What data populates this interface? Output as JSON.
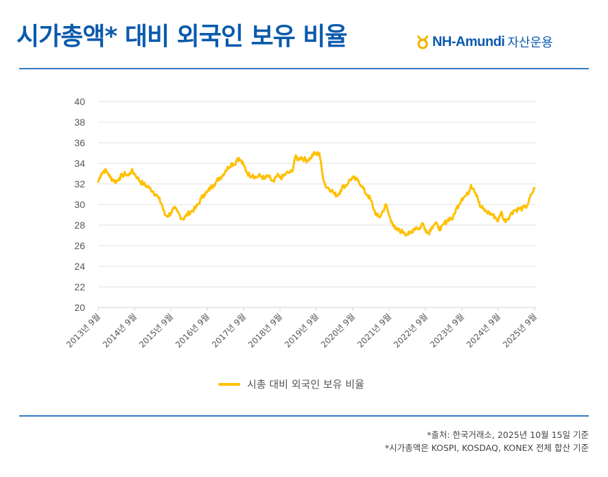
{
  "header": {
    "title": "시가총액* 대비 외국인 보유 비율",
    "brand": "NH-Amundi",
    "brand_suffix": "자산운용",
    "accent_color": "#0a5aad"
  },
  "chart_data": {
    "type": "line",
    "title": "",
    "xlabel": "",
    "ylabel": "",
    "ylim": [
      20,
      40
    ],
    "yticks": [
      "40",
      "38",
      "36",
      "34",
      "32",
      "30",
      "28",
      "26",
      "24",
      "22",
      "20"
    ],
    "ytick_values": [
      40,
      38,
      36,
      34,
      32,
      30,
      28,
      26,
      24,
      22,
      20
    ],
    "xticks": [
      "2013년 9월",
      "2014년 9월",
      "2015년 9월",
      "2016년 9월",
      "2017년 9월",
      "2018년 9월",
      "2019년 9월",
      "2020년 9월",
      "2021년 9월",
      "2022년 9월",
      "2023년 9월",
      "2024년 9월",
      "2025년 9월"
    ],
    "grid": true,
    "legend_position": "bottom",
    "x_start": "2013-09",
    "x_step": "month",
    "series": [
      {
        "name": "시총 대비 외국인 보유 비율",
        "color": "#ffc000",
        "values": [
          32.2,
          33.0,
          33.3,
          33.2,
          32.6,
          32.4,
          32.2,
          32.6,
          32.8,
          33.0,
          32.8,
          33.3,
          33.0,
          32.6,
          32.2,
          32.0,
          31.8,
          31.6,
          31.3,
          31.0,
          30.6,
          30.0,
          29.0,
          28.9,
          29.2,
          29.6,
          29.4,
          28.9,
          28.6,
          28.9,
          29.2,
          29.4,
          29.6,
          30.0,
          30.6,
          31.0,
          31.2,
          31.6,
          31.9,
          32.2,
          32.6,
          32.8,
          33.3,
          33.6,
          34.0,
          33.9,
          34.5,
          34.3,
          33.8,
          33.2,
          32.8,
          32.9,
          32.6,
          32.8,
          32.7,
          32.5,
          32.8,
          32.4,
          32.2,
          32.8,
          32.6,
          32.7,
          33.0,
          33.1,
          33.2,
          34.6,
          34.4,
          34.6,
          34.4,
          34.3,
          34.5,
          34.9,
          34.9,
          35.0,
          33.0,
          31.8,
          31.6,
          31.4,
          31.0,
          30.9,
          31.4,
          31.8,
          31.9,
          32.4,
          32.6,
          32.4,
          32.3,
          31.8,
          31.2,
          30.9,
          30.4,
          29.5,
          28.9,
          28.8,
          29.4,
          30.0,
          28.9,
          28.3,
          27.6,
          27.5,
          27.4,
          27.3,
          27.1,
          27.2,
          27.6,
          27.8,
          27.6,
          28.2,
          27.6,
          27.2,
          27.8,
          28.1,
          28.0,
          27.5,
          28.1,
          28.4,
          28.7,
          28.6,
          29.5,
          30.0,
          30.6,
          30.8,
          31.0,
          31.9,
          31.5,
          30.9,
          29.8,
          29.6,
          29.3,
          29.2,
          29.0,
          28.8,
          28.4,
          29.3,
          28.4,
          28.6,
          29.0,
          29.4,
          29.5,
          29.6,
          29.6,
          29.7,
          30.2,
          31.0,
          31.6
        ]
      }
    ]
  },
  "legend": {
    "label": "시총 대비 외국인 보유 비율"
  },
  "footnotes": [
    "*출처: 한국거래소, 2025년 10월 15일 기준",
    "*시가총액은 KOSPI, KOSDAQ, KONEX 전체 합산 기준"
  ]
}
